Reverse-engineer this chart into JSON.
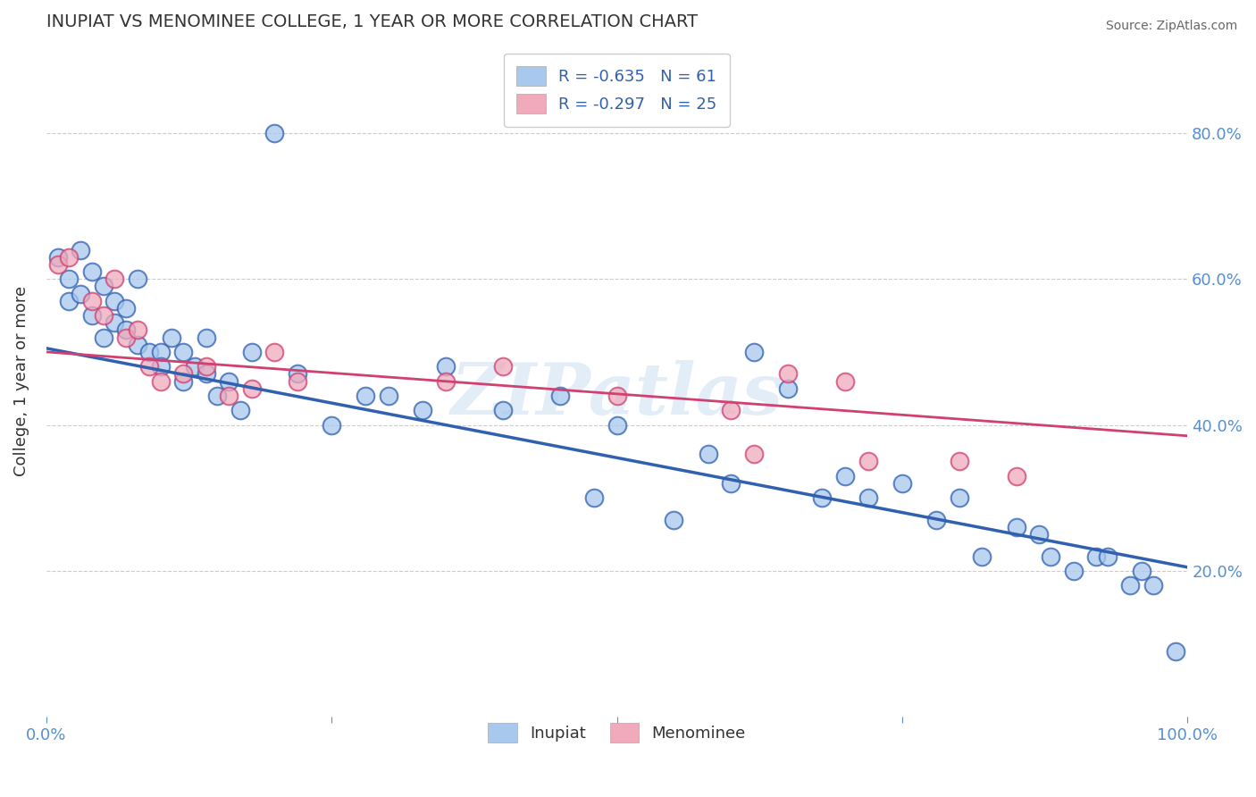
{
  "title": "INUPIAT VS MENOMINEE COLLEGE, 1 YEAR OR MORE CORRELATION CHART",
  "source_text": "Source: ZipAtlas.com",
  "ylabel": "College, 1 year or more",
  "xlim": [
    0.0,
    1.0
  ],
  "ylim": [
    0.0,
    0.92
  ],
  "xtick_positions": [
    0.0,
    0.25,
    0.5,
    0.75,
    1.0
  ],
  "xticklabels": [
    "0.0%",
    "",
    "",
    "",
    "100.0%"
  ],
  "ytick_right_positions": [
    0.2,
    0.4,
    0.6,
    0.8
  ],
  "ytick_right_labels": [
    "20.0%",
    "40.0%",
    "60.0%",
    "80.0%"
  ],
  "blue_color": "#A8C8EE",
  "pink_color": "#F0AABB",
  "blue_line_color": "#3060B0",
  "pink_line_color": "#D04070",
  "legend_R1": "R = -0.635",
  "legend_N1": "N = 61",
  "legend_R2": "R = -0.297",
  "legend_N2": "N = 25",
  "watermark": "ZIPatlas",
  "inupiat_x": [
    0.01,
    0.02,
    0.02,
    0.03,
    0.03,
    0.04,
    0.04,
    0.05,
    0.05,
    0.06,
    0.06,
    0.07,
    0.07,
    0.08,
    0.08,
    0.09,
    0.1,
    0.1,
    0.11,
    0.12,
    0.12,
    0.13,
    0.14,
    0.14,
    0.15,
    0.16,
    0.17,
    0.18,
    0.2,
    0.22,
    0.25,
    0.28,
    0.3,
    0.33,
    0.35,
    0.4,
    0.45,
    0.48,
    0.5,
    0.55,
    0.58,
    0.6,
    0.62,
    0.65,
    0.68,
    0.7,
    0.72,
    0.75,
    0.78,
    0.8,
    0.82,
    0.85,
    0.87,
    0.88,
    0.9,
    0.92,
    0.93,
    0.95,
    0.96,
    0.97,
    0.99
  ],
  "inupiat_y": [
    0.63,
    0.6,
    0.57,
    0.64,
    0.58,
    0.61,
    0.55,
    0.59,
    0.52,
    0.57,
    0.54,
    0.53,
    0.56,
    0.6,
    0.51,
    0.5,
    0.5,
    0.48,
    0.52,
    0.5,
    0.46,
    0.48,
    0.47,
    0.52,
    0.44,
    0.46,
    0.42,
    0.5,
    0.8,
    0.47,
    0.4,
    0.44,
    0.44,
    0.42,
    0.48,
    0.42,
    0.44,
    0.3,
    0.4,
    0.27,
    0.36,
    0.32,
    0.5,
    0.45,
    0.3,
    0.33,
    0.3,
    0.32,
    0.27,
    0.3,
    0.22,
    0.26,
    0.25,
    0.22,
    0.2,
    0.22,
    0.22,
    0.18,
    0.2,
    0.18,
    0.09
  ],
  "menominee_x": [
    0.01,
    0.02,
    0.04,
    0.05,
    0.06,
    0.07,
    0.08,
    0.09,
    0.1,
    0.12,
    0.14,
    0.16,
    0.18,
    0.2,
    0.22,
    0.35,
    0.4,
    0.5,
    0.6,
    0.62,
    0.65,
    0.7,
    0.72,
    0.8,
    0.85
  ],
  "menominee_y": [
    0.62,
    0.63,
    0.57,
    0.55,
    0.6,
    0.52,
    0.53,
    0.48,
    0.46,
    0.47,
    0.48,
    0.44,
    0.45,
    0.5,
    0.46,
    0.46,
    0.48,
    0.44,
    0.42,
    0.36,
    0.47,
    0.46,
    0.35,
    0.35,
    0.33
  ],
  "blue_trendline": [
    0.505,
    0.205
  ],
  "pink_trendline": [
    0.5,
    0.385
  ],
  "background_color": "#FFFFFF",
  "grid_color": "#CCCCCC"
}
